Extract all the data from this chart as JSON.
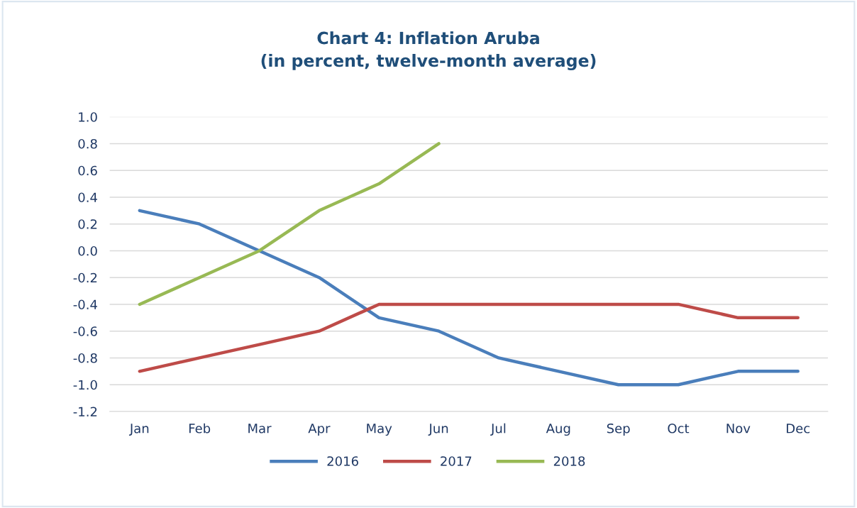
{
  "chart_data": {
    "type": "line",
    "title": "Chart 4: Inflation Aruba\n(in percent, twelve-month average)",
    "categories": [
      "Jan",
      "Feb",
      "Mar",
      "Apr",
      "May",
      "Jun",
      "Jul",
      "Aug",
      "Sep",
      "Oct",
      "Nov",
      "Dec"
    ],
    "series": [
      {
        "name": "2016",
        "color": "#4a7ebb",
        "values": [
          0.3,
          0.2,
          0.0,
          -0.2,
          -0.5,
          -0.6,
          -0.8,
          -0.9,
          -1.0,
          -1.0,
          -0.9,
          -0.9
        ]
      },
      {
        "name": "2017",
        "color": "#be4b48",
        "values": [
          -0.9,
          -0.8,
          -0.7,
          -0.6,
          -0.4,
          -0.4,
          -0.4,
          -0.4,
          -0.4,
          -0.4,
          -0.5,
          -0.5
        ]
      },
      {
        "name": "2018",
        "color": "#98b954",
        "values": [
          -0.4,
          -0.2,
          0.0,
          0.3,
          0.5,
          0.8,
          null,
          null,
          null,
          null,
          null,
          null
        ]
      }
    ],
    "ylim": [
      -1.2,
      1.0
    ],
    "yticks": [
      {
        "value": 1,
        "label": "1.0"
      },
      0.8,
      0.6,
      0.4,
      0.2,
      {
        "value": 0,
        "label": "0.0"
      },
      -0.2,
      -0.4,
      -0.6,
      -0.8,
      {
        "value": -1,
        "label": "-1.0"
      },
      -1.2
    ],
    "grid": "y",
    "legend": "bottom",
    "marker": "none",
    "line_style": "solid"
  }
}
